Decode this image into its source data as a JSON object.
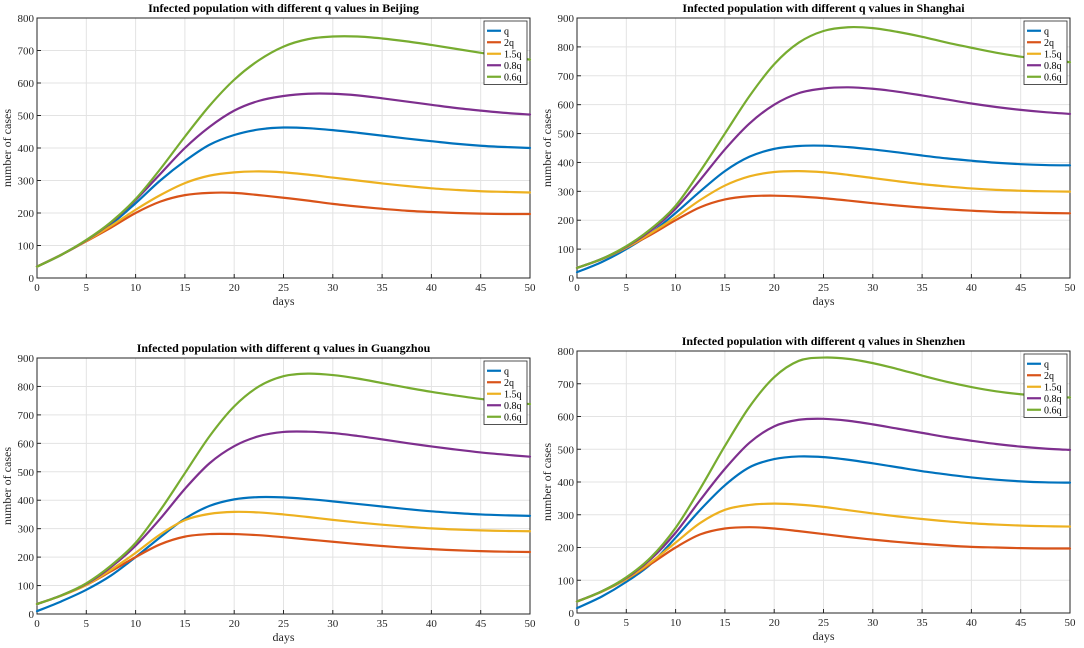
{
  "chart_data": [
    {
      "type": "line",
      "title": "Infected population with different q values in Beijing",
      "xlabel": "days",
      "ylabel": "number of cases",
      "xlim": [
        0,
        50
      ],
      "ylim": [
        0,
        800
      ],
      "xticks": [
        0,
        5,
        10,
        15,
        20,
        25,
        30,
        35,
        40,
        45,
        50
      ],
      "yticks": [
        0,
        100,
        200,
        300,
        400,
        500,
        600,
        700,
        800
      ],
      "grid": true,
      "legend_position": "top-right",
      "x": [
        0,
        2.5,
        5,
        7.5,
        10,
        12.5,
        15,
        17.5,
        20,
        22.5,
        25,
        27.5,
        30,
        32.5,
        35,
        37.5,
        40,
        42.5,
        45,
        47.5,
        50
      ],
      "series": [
        {
          "name": "q",
          "color": "#0072BD",
          "values": [
            35,
            72,
            115,
            165,
            230,
            300,
            360,
            410,
            440,
            457,
            463,
            461,
            455,
            447,
            438,
            429,
            421,
            413,
            407,
            403,
            400
          ]
        },
        {
          "name": "2q",
          "color": "#D95319",
          "values": [
            35,
            72,
            113,
            155,
            200,
            235,
            255,
            262,
            262,
            255,
            247,
            238,
            228,
            220,
            213,
            207,
            203,
            200,
            198,
            197,
            197
          ]
        },
        {
          "name": "1.5q",
          "color": "#EDB120",
          "values": [
            35,
            72,
            114,
            160,
            210,
            255,
            292,
            315,
            325,
            328,
            325,
            318,
            309,
            300,
            291,
            283,
            276,
            271,
            267,
            265,
            263
          ]
        },
        {
          "name": "0.8q",
          "color": "#7E2F8E",
          "values": [
            35,
            72,
            116,
            170,
            240,
            320,
            400,
            465,
            515,
            545,
            560,
            567,
            567,
            562,
            553,
            543,
            533,
            523,
            515,
            508,
            503
          ]
        },
        {
          "name": "0.6q",
          "color": "#77AC30",
          "values": [
            35,
            72,
            117,
            172,
            243,
            335,
            435,
            530,
            610,
            670,
            712,
            735,
            743,
            743,
            737,
            728,
            717,
            705,
            693,
            682,
            672
          ]
        }
      ]
    },
    {
      "type": "line",
      "title": "Infected population with different q values in Shanghai",
      "xlabel": "days",
      "ylabel": "number of cases",
      "xlim": [
        0,
        50
      ],
      "ylim": [
        0,
        900
      ],
      "xticks": [
        0,
        5,
        10,
        15,
        20,
        25,
        30,
        35,
        40,
        45,
        50
      ],
      "yticks": [
        0,
        100,
        200,
        300,
        400,
        500,
        600,
        700,
        800,
        900
      ],
      "grid": true,
      "legend_position": "top-right",
      "x": [
        0,
        2.5,
        5,
        7.5,
        10,
        12.5,
        15,
        17.5,
        20,
        22.5,
        25,
        27.5,
        30,
        32.5,
        35,
        37.5,
        40,
        42.5,
        45,
        47.5,
        50
      ],
      "series": [
        {
          "name": "q",
          "color": "#0072BD",
          "values": [
            20,
            55,
            100,
            155,
            225,
            300,
            370,
            420,
            447,
            457,
            458,
            453,
            445,
            435,
            424,
            414,
            406,
            399,
            394,
            391,
            390
          ]
        },
        {
          "name": "2q",
          "color": "#D95319",
          "values": [
            35,
            65,
            105,
            150,
            200,
            245,
            272,
            283,
            285,
            282,
            276,
            268,
            259,
            251,
            244,
            238,
            233,
            229,
            227,
            225,
            224
          ]
        },
        {
          "name": "1.5q",
          "color": "#EDB120",
          "values": [
            35,
            65,
            105,
            155,
            210,
            270,
            320,
            352,
            367,
            370,
            366,
            357,
            346,
            335,
            325,
            317,
            310,
            305,
            302,
            300,
            299
          ]
        },
        {
          "name": "0.8q",
          "color": "#7E2F8E",
          "values": [
            35,
            66,
            108,
            165,
            240,
            340,
            445,
            535,
            600,
            640,
            656,
            660,
            655,
            645,
            632,
            618,
            604,
            592,
            582,
            574,
            568
          ]
        },
        {
          "name": "0.6q",
          "color": "#77AC30",
          "values": [
            35,
            66,
            110,
            170,
            250,
            370,
            500,
            630,
            740,
            815,
            855,
            868,
            865,
            852,
            835,
            815,
            797,
            780,
            766,
            755,
            747
          ]
        }
      ]
    },
    {
      "type": "line",
      "title": "Infected population with different q values in Guangzhou",
      "xlabel": "days",
      "ylabel": "number of cases",
      "xlim": [
        0,
        50
      ],
      "ylim": [
        0,
        900
      ],
      "xticks": [
        0,
        5,
        10,
        15,
        20,
        25,
        30,
        35,
        40,
        45,
        50
      ],
      "yticks": [
        0,
        100,
        200,
        300,
        400,
        500,
        600,
        700,
        800,
        900
      ],
      "grid": true,
      "legend_position": "top-right",
      "x": [
        0,
        2.5,
        5,
        7.5,
        10,
        12.5,
        15,
        17.5,
        20,
        22.5,
        25,
        27.5,
        30,
        32.5,
        35,
        37.5,
        40,
        42.5,
        45,
        47.5,
        50
      ],
      "series": [
        {
          "name": "q",
          "color": "#0072BD",
          "values": [
            10,
            45,
            85,
            135,
            200,
            270,
            335,
            380,
            403,
            411,
            410,
            404,
            396,
            387,
            378,
            369,
            361,
            355,
            350,
            347,
            345
          ]
        },
        {
          "name": "2q",
          "color": "#D95319",
          "values": [
            35,
            65,
            102,
            150,
            200,
            245,
            272,
            281,
            281,
            277,
            270,
            262,
            254,
            246,
            239,
            233,
            228,
            224,
            221,
            219,
            218
          ]
        },
        {
          "name": "1.5q",
          "color": "#EDB120",
          "values": [
            35,
            65,
            102,
            155,
            215,
            280,
            330,
            352,
            359,
            357,
            350,
            341,
            331,
            322,
            314,
            307,
            301,
            297,
            294,
            292,
            291
          ]
        },
        {
          "name": "0.8q",
          "color": "#7E2F8E",
          "values": [
            35,
            66,
            106,
            165,
            240,
            335,
            440,
            530,
            590,
            625,
            640,
            641,
            636,
            626,
            614,
            601,
            589,
            578,
            568,
            560,
            553
          ]
        },
        {
          "name": "0.6q",
          "color": "#77AC30",
          "values": [
            35,
            66,
            108,
            170,
            250,
            365,
            495,
            625,
            730,
            800,
            836,
            845,
            840,
            828,
            812,
            796,
            781,
            768,
            756,
            746,
            738
          ]
        }
      ]
    },
    {
      "type": "line",
      "title": "Infected population with different q values in Shenzhen",
      "xlabel": "days",
      "ylabel": "number of cases",
      "xlim": [
        0,
        50
      ],
      "ylim": [
        0,
        800
      ],
      "xticks": [
        0,
        5,
        10,
        15,
        20,
        25,
        30,
        35,
        40,
        45,
        50
      ],
      "yticks": [
        0,
        100,
        200,
        300,
        400,
        500,
        600,
        700,
        800
      ],
      "grid": true,
      "legend_position": "top-right",
      "x": [
        0,
        2.5,
        5,
        7.5,
        10,
        12.5,
        15,
        17.5,
        20,
        22.5,
        25,
        27.5,
        30,
        32.5,
        35,
        37.5,
        40,
        42.5,
        45,
        47.5,
        50
      ],
      "series": [
        {
          "name": "q",
          "color": "#0072BD",
          "values": [
            15,
            50,
            95,
            150,
            230,
            315,
            390,
            445,
            470,
            478,
            476,
            468,
            457,
            445,
            433,
            423,
            414,
            407,
            402,
            399,
            398
          ]
        },
        {
          "name": "2q",
          "color": "#D95319",
          "values": [
            35,
            65,
            103,
            150,
            200,
            240,
            258,
            262,
            258,
            250,
            241,
            232,
            224,
            217,
            211,
            206,
            202,
            200,
            198,
            197,
            197
          ]
        },
        {
          "name": "1.5q",
          "color": "#EDB120",
          "values": [
            35,
            65,
            103,
            155,
            215,
            275,
            315,
            330,
            334,
            331,
            324,
            314,
            304,
            295,
            287,
            280,
            274,
            270,
            267,
            265,
            264
          ]
        },
        {
          "name": "0.8q",
          "color": "#7E2F8E",
          "values": [
            35,
            66,
            107,
            165,
            245,
            345,
            440,
            520,
            570,
            590,
            593,
            587,
            576,
            563,
            550,
            537,
            526,
            516,
            508,
            502,
            498
          ]
        },
        {
          "name": "0.6q",
          "color": "#77AC30",
          "values": [
            35,
            66,
            109,
            170,
            260,
            380,
            510,
            630,
            720,
            770,
            780,
            776,
            763,
            745,
            725,
            706,
            690,
            677,
            668,
            662,
            658
          ]
        }
      ]
    }
  ]
}
